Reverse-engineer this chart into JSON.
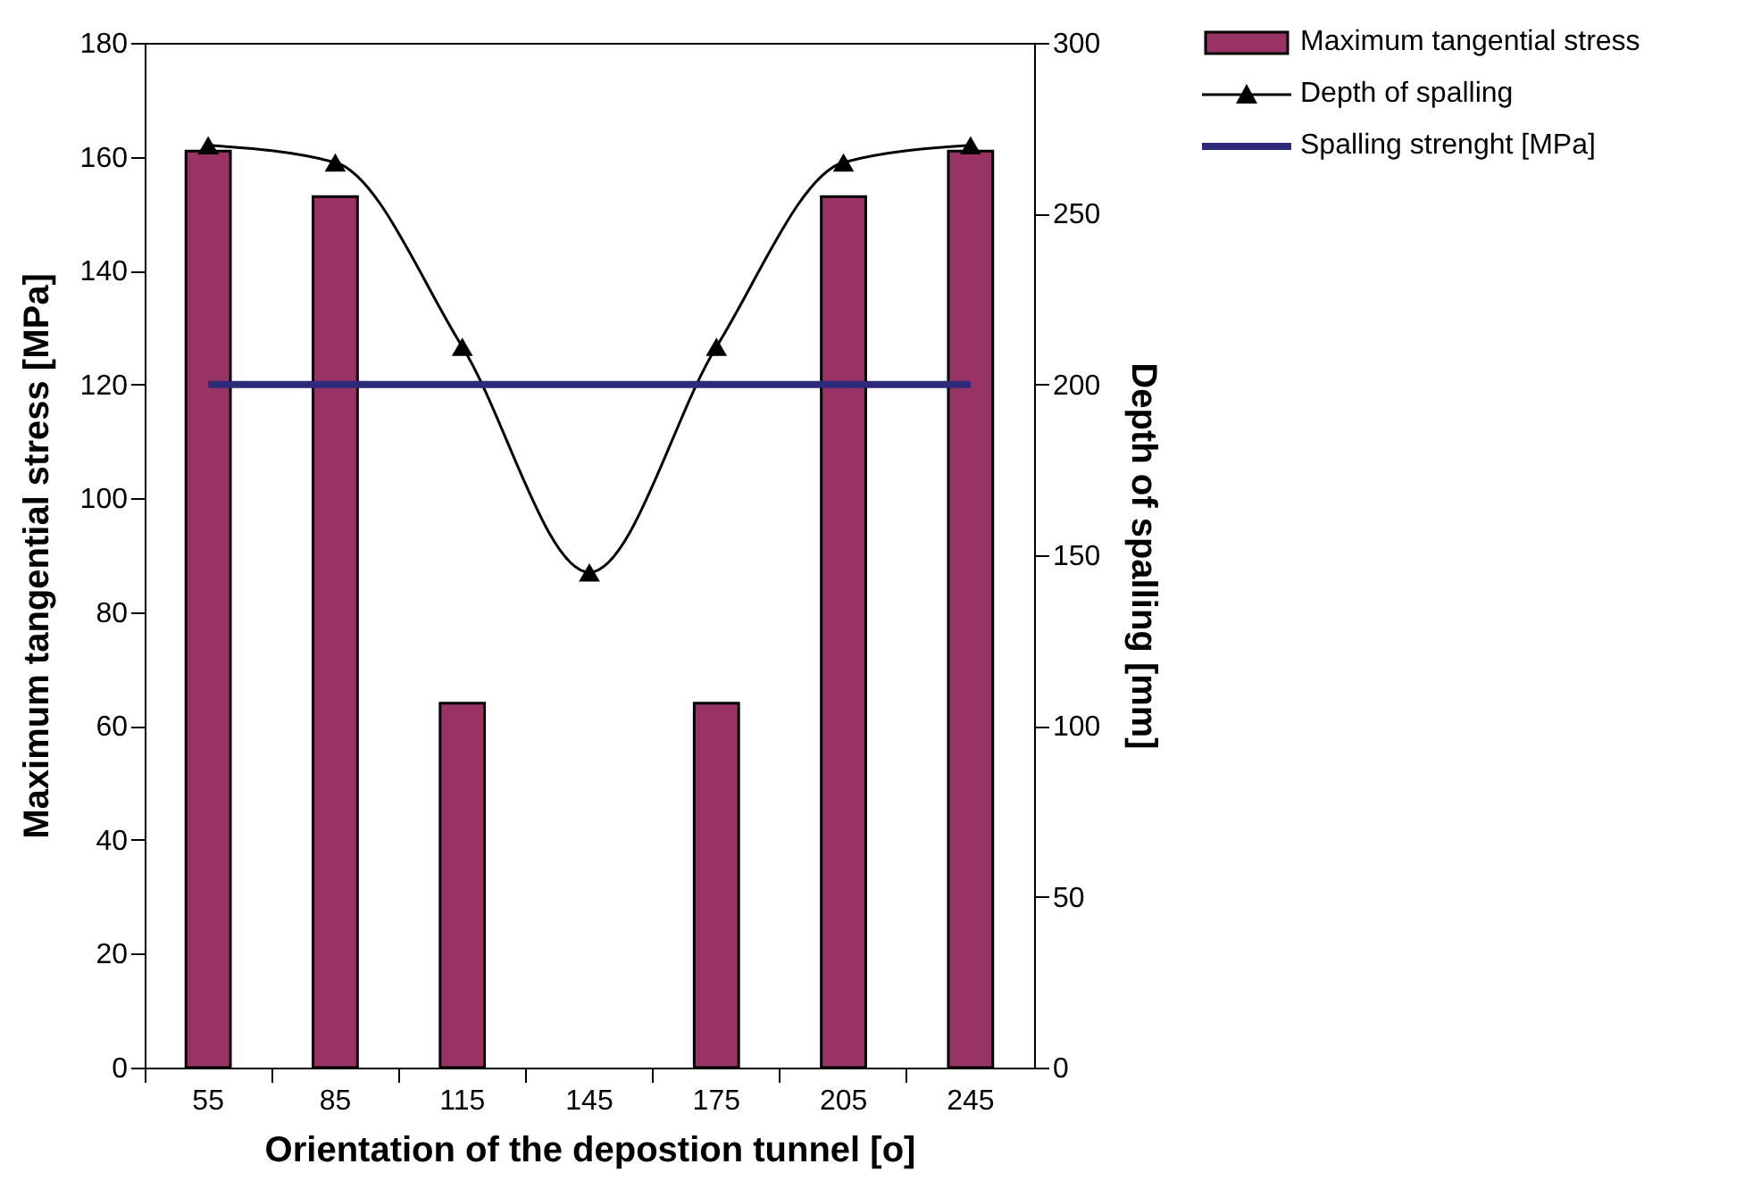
{
  "chart_data": {
    "type": "bar",
    "xlabel": "Orientation of the depostion tunnel [o]",
    "ylabel": "Maximum tangential stress [MPa]",
    "y2label": "Depth of spalling [mm]",
    "categories": [
      "55",
      "85",
      "115",
      "145",
      "175",
      "205",
      "245"
    ],
    "ylim": [
      0,
      180
    ],
    "yticks": [
      0,
      20,
      40,
      60,
      80,
      100,
      120,
      140,
      160,
      180
    ],
    "y2lim": [
      0,
      300
    ],
    "y2ticks": [
      0,
      50,
      100,
      150,
      200,
      250,
      300
    ],
    "grid": false,
    "legend": "right",
    "series": [
      {
        "name": "Maximum tangential stress",
        "color": "#993366",
        "values": [
          161,
          153,
          64,
          null,
          64,
          153,
          161
        ]
      },
      {
        "name": "Depth of spalling",
        "type": "line",
        "axis": "y2",
        "marker": "triangle",
        "color": "#000000",
        "values": [
          270,
          265,
          211,
          145,
          211,
          265,
          270
        ]
      },
      {
        "name": "Spalling strenght [MPa]",
        "type": "line",
        "color": "#2e2a7a",
        "values": [
          120,
          120,
          120,
          120,
          120,
          120,
          120
        ]
      }
    ]
  }
}
